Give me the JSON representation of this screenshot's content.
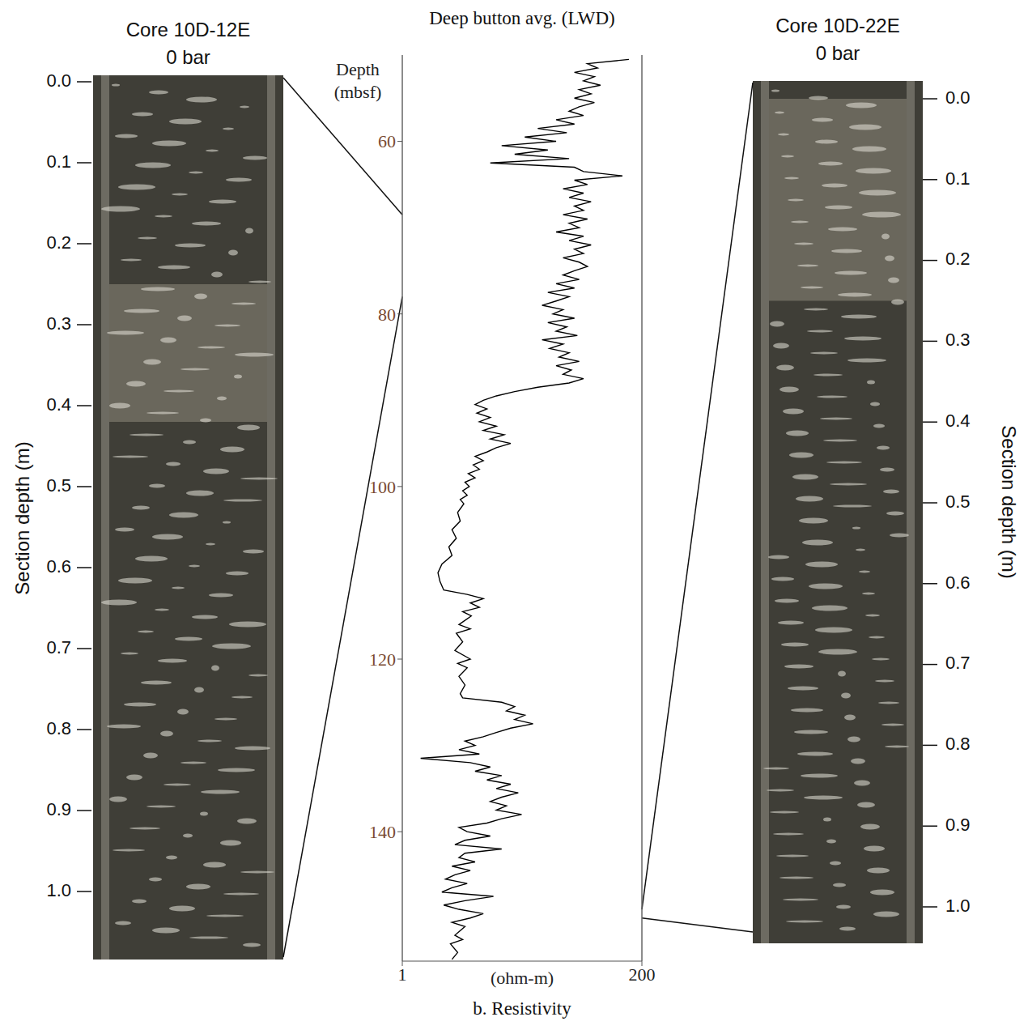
{
  "chart_data": {
    "type": "line",
    "title": "Deep button avg. (LWD)",
    "x_label": "b. Resistivity",
    "x_units": "(ohm-m)",
    "y_label": "Depth (mbsf)",
    "log": "x",
    "grid": true,
    "color": "#000000",
    "xlim": [
      1,
      200
    ],
    "xticks": [
      1,
      200
    ],
    "ylim": [
      50,
      155
    ],
    "yticks": [
      60,
      80,
      100,
      120,
      140
    ],
    "points": [
      [
        50.5,
        150
      ],
      [
        51,
        60
      ],
      [
        51.5,
        75
      ],
      [
        52,
        45
      ],
      [
        52.5,
        70
      ],
      [
        53,
        55
      ],
      [
        53.5,
        80
      ],
      [
        54,
        50
      ],
      [
        54.5,
        65
      ],
      [
        55,
        45
      ],
      [
        55.5,
        70
      ],
      [
        56,
        50
      ],
      [
        56.5,
        40
      ],
      [
        57,
        55
      ],
      [
        57.5,
        30
      ],
      [
        58,
        45
      ],
      [
        58.5,
        20
      ],
      [
        59,
        38
      ],
      [
        59.5,
        15
      ],
      [
        60,
        30
      ],
      [
        60.5,
        9
      ],
      [
        61,
        25
      ],
      [
        61.5,
        12
      ],
      [
        62,
        40
      ],
      [
        62.5,
        7
      ],
      [
        63,
        45
      ],
      [
        63.5,
        55
      ],
      [
        64,
        130
      ],
      [
        64.5,
        45
      ],
      [
        65,
        60
      ],
      [
        65.5,
        35
      ],
      [
        66,
        55
      ],
      [
        66.5,
        40
      ],
      [
        67,
        65
      ],
      [
        67.5,
        45
      ],
      [
        68,
        55
      ],
      [
        68.5,
        35
      ],
      [
        69,
        60
      ],
      [
        69.5,
        40
      ],
      [
        70,
        50
      ],
      [
        70.5,
        30
      ],
      [
        71,
        55
      ],
      [
        71.5,
        40
      ],
      [
        72,
        65
      ],
      [
        72.5,
        45
      ],
      [
        73,
        55
      ],
      [
        73.5,
        35
      ],
      [
        74,
        50
      ],
      [
        74.5,
        60
      ],
      [
        75,
        45
      ],
      [
        75.5,
        35
      ],
      [
        76,
        50
      ],
      [
        76.5,
        30
      ],
      [
        77,
        45
      ],
      [
        77.5,
        25
      ],
      [
        78,
        40
      ],
      [
        78.5,
        30
      ],
      [
        79,
        22
      ],
      [
        79.5,
        35
      ],
      [
        80,
        28
      ],
      [
        80.5,
        45
      ],
      [
        81,
        25
      ],
      [
        81.5,
        38
      ],
      [
        82,
        30
      ],
      [
        82.5,
        48
      ],
      [
        83,
        22
      ],
      [
        83.5,
        35
      ],
      [
        84,
        26
      ],
      [
        84.5,
        40
      ],
      [
        85,
        32
      ],
      [
        85.5,
        50
      ],
      [
        86,
        30
      ],
      [
        86.5,
        42
      ],
      [
        87,
        35
      ],
      [
        87.5,
        55
      ],
      [
        88,
        40
      ],
      [
        88.5,
        20
      ],
      [
        89,
        12
      ],
      [
        89.5,
        8
      ],
      [
        90,
        6
      ],
      [
        90.5,
        5
      ],
      [
        91,
        6.5
      ],
      [
        91.5,
        5.2
      ],
      [
        92,
        7
      ],
      [
        92.5,
        5.5
      ],
      [
        93,
        8
      ],
      [
        93.5,
        6
      ],
      [
        94,
        9.5
      ],
      [
        94.5,
        7
      ],
      [
        95,
        11
      ],
      [
        95.5,
        8
      ],
      [
        96,
        6.5
      ],
      [
        96.5,
        5
      ],
      [
        97,
        6
      ],
      [
        97.5,
        4.8
      ],
      [
        98,
        5.5
      ],
      [
        98.5,
        4.3
      ],
      [
        99,
        5
      ],
      [
        99.5,
        4
      ],
      [
        100,
        4.4
      ],
      [
        100.5,
        3.8
      ],
      [
        101,
        4.2
      ],
      [
        101.5,
        3.6
      ],
      [
        102,
        3.9
      ],
      [
        103,
        3.4
      ],
      [
        104,
        3.6
      ],
      [
        105,
        3
      ],
      [
        106,
        3.3
      ],
      [
        107,
        2.8
      ],
      [
        108,
        3
      ],
      [
        109,
        2.4
      ],
      [
        110,
        2.2
      ],
      [
        111,
        2.3
      ],
      [
        112,
        2.5
      ],
      [
        112.5,
        4.2
      ],
      [
        113,
        6
      ],
      [
        113.5,
        4.5
      ],
      [
        114,
        5.5
      ],
      [
        114.5,
        3.8
      ],
      [
        115,
        4.6
      ],
      [
        116,
        3.5
      ],
      [
        116.5,
        4.5
      ],
      [
        117,
        3.3
      ],
      [
        118,
        3.8
      ],
      [
        119,
        3.2
      ],
      [
        120,
        4.5
      ],
      [
        120.5,
        3.4
      ],
      [
        121,
        4.2
      ],
      [
        122,
        3.5
      ],
      [
        123,
        4
      ],
      [
        124,
        3.6
      ],
      [
        124.5,
        3.8
      ],
      [
        125,
        9
      ],
      [
        125.5,
        12
      ],
      [
        126,
        10
      ],
      [
        126.5,
        15
      ],
      [
        127,
        12
      ],
      [
        127.5,
        18
      ],
      [
        128,
        11
      ],
      [
        128.5,
        8
      ],
      [
        129,
        6
      ],
      [
        129.5,
        4
      ],
      [
        130,
        5
      ],
      [
        130.5,
        3.5
      ],
      [
        131,
        5.5
      ],
      [
        131.5,
        1.5
      ],
      [
        132,
        4.5
      ],
      [
        132.5,
        7
      ],
      [
        133,
        5
      ],
      [
        133.5,
        9
      ],
      [
        134,
        6.5
      ],
      [
        134.5,
        11
      ],
      [
        135,
        8
      ],
      [
        135.5,
        13
      ],
      [
        136,
        9
      ],
      [
        136.5,
        7
      ],
      [
        137,
        10
      ],
      [
        137.5,
        8
      ],
      [
        138,
        14
      ],
      [
        138.5,
        9
      ],
      [
        139,
        6.5
      ],
      [
        139.5,
        3.5
      ],
      [
        140,
        4.2
      ],
      [
        140.5,
        7
      ],
      [
        141,
        4
      ],
      [
        141.5,
        3.2
      ],
      [
        142,
        9
      ],
      [
        142.5,
        4
      ],
      [
        143,
        3.5
      ],
      [
        143.5,
        5
      ],
      [
        144,
        3
      ],
      [
        144.5,
        4.5
      ],
      [
        145,
        3.2
      ],
      [
        145.5,
        2.6
      ],
      [
        146,
        4.2
      ],
      [
        146.5,
        3
      ],
      [
        147,
        2.4
      ],
      [
        147.5,
        7.5
      ],
      [
        148,
        4
      ],
      [
        148.5,
        2.5
      ],
      [
        149,
        3.5
      ],
      [
        149.5,
        6
      ],
      [
        150,
        4.5
      ],
      [
        150.5,
        3
      ],
      [
        151,
        4
      ],
      [
        152,
        3.2
      ],
      [
        152.5,
        3.8
      ],
      [
        153,
        2.9
      ],
      [
        154,
        3.4
      ],
      [
        154.8,
        3
      ]
    ]
  },
  "cores": [
    {
      "title": "Core 10D-12E",
      "subtitle": "0 bar",
      "axis_label": "Section depth (m)",
      "ticks": [
        {
          "value": 0,
          "label": "0.0"
        },
        0.1,
        0.2,
        0.3,
        0.4,
        0.5,
        0.6,
        0.7,
        0.8,
        0.9,
        {
          "value": 1,
          "label": "1.0"
        }
      ],
      "link_depths": [
        68.5,
        78
      ]
    },
    {
      "title": "Core 10D-22E",
      "subtitle": "0 bar",
      "axis_label": "Section depth (m)",
      "ticks": [
        {
          "value": 0,
          "label": "0.0"
        },
        0.1,
        0.2,
        0.3,
        0.4,
        0.5,
        0.6,
        0.7,
        0.8,
        0.9,
        {
          "value": 1,
          "label": "1.0"
        }
      ],
      "link_depths": [
        149,
        150
      ]
    }
  ]
}
